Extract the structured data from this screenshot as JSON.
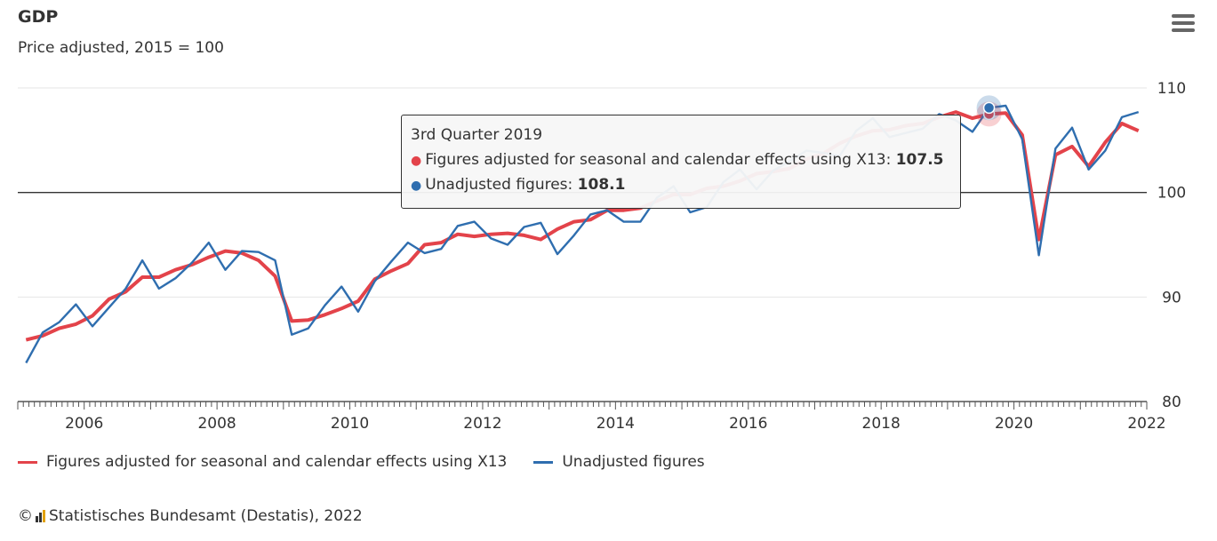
{
  "chart_data": {
    "type": "line",
    "title": "GDP",
    "subtitle": "Price adjusted, 2015 = 100",
    "xlim": [
      2005.0,
      2022.0
    ],
    "ylim": [
      80,
      110
    ],
    "x_ticks": [
      2006,
      2008,
      2010,
      2012,
      2014,
      2016,
      2018,
      2020,
      2022
    ],
    "y_ticks": [
      80,
      90,
      100,
      110
    ],
    "reference_line": 100,
    "grid": true,
    "legend_position": "bottom-left",
    "series": [
      {
        "name": "Figures adjusted for seasonal and calendar effects using X13",
        "color": "#e3434a",
        "x": [
          2005.125,
          2005.375,
          2005.625,
          2005.875,
          2006.125,
          2006.375,
          2006.625,
          2006.875,
          2007.125,
          2007.375,
          2007.625,
          2007.875,
          2008.125,
          2008.375,
          2008.625,
          2008.875,
          2009.125,
          2009.375,
          2009.625,
          2009.875,
          2010.125,
          2010.375,
          2010.625,
          2010.875,
          2011.125,
          2011.375,
          2011.625,
          2011.875,
          2012.125,
          2012.375,
          2012.625,
          2012.875,
          2013.125,
          2013.375,
          2013.625,
          2013.875,
          2014.125,
          2014.375,
          2014.625,
          2014.875,
          2015.125,
          2015.375,
          2015.625,
          2015.875,
          2016.125,
          2016.375,
          2016.625,
          2016.875,
          2017.125,
          2017.375,
          2017.625,
          2017.875,
          2018.125,
          2018.375,
          2018.625,
          2018.875,
          2019.125,
          2019.375,
          2019.625,
          2019.875,
          2020.125,
          2020.375,
          2020.625,
          2020.875,
          2021.125,
          2021.375,
          2021.625,
          2021.875
        ],
        "values": [
          85.9,
          86.3,
          87.0,
          87.4,
          88.2,
          89.8,
          90.5,
          91.9,
          91.9,
          92.6,
          93.1,
          93.8,
          94.4,
          94.2,
          93.5,
          92.0,
          87.7,
          87.8,
          88.3,
          88.9,
          89.6,
          91.7,
          92.5,
          93.2,
          95.0,
          95.2,
          96.0,
          95.8,
          96.0,
          96.1,
          95.9,
          95.5,
          96.5,
          97.2,
          97.4,
          98.3,
          98.3,
          98.5,
          99.2,
          99.8,
          99.8,
          100.4,
          100.6,
          101.1,
          101.8,
          102.0,
          102.3,
          103.2,
          103.7,
          104.7,
          105.4,
          105.9,
          106.0,
          106.4,
          106.6,
          107.2,
          107.7,
          107.1,
          107.5,
          107.6,
          105.5,
          95.5,
          103.6,
          104.4,
          102.5,
          104.8,
          106.6,
          105.9
        ]
      },
      {
        "name": "Unadjusted figures",
        "color": "#2f6eaf",
        "x": [
          2005.125,
          2005.375,
          2005.625,
          2005.875,
          2006.125,
          2006.375,
          2006.625,
          2006.875,
          2007.125,
          2007.375,
          2007.625,
          2007.875,
          2008.125,
          2008.375,
          2008.625,
          2008.875,
          2009.125,
          2009.375,
          2009.625,
          2009.875,
          2010.125,
          2010.375,
          2010.625,
          2010.875,
          2011.125,
          2011.375,
          2011.625,
          2011.875,
          2012.125,
          2012.375,
          2012.625,
          2012.875,
          2013.125,
          2013.375,
          2013.625,
          2013.875,
          2014.125,
          2014.375,
          2014.625,
          2014.875,
          2015.125,
          2015.375,
          2015.625,
          2015.875,
          2016.125,
          2016.375,
          2016.625,
          2016.875,
          2017.125,
          2017.375,
          2017.625,
          2017.875,
          2018.125,
          2018.375,
          2018.625,
          2018.875,
          2019.125,
          2019.375,
          2019.625,
          2019.875,
          2020.125,
          2020.375,
          2020.625,
          2020.875,
          2021.125,
          2021.375,
          2021.625,
          2021.875
        ],
        "values": [
          83.7,
          86.6,
          87.6,
          89.3,
          87.2,
          89.0,
          90.8,
          93.5,
          90.8,
          91.8,
          93.3,
          95.2,
          92.6,
          94.4,
          94.3,
          93.5,
          86.4,
          87.0,
          89.2,
          91.0,
          88.6,
          91.5,
          93.4,
          95.2,
          94.2,
          94.6,
          96.8,
          97.2,
          95.6,
          95.0,
          96.7,
          97.1,
          94.1,
          95.9,
          97.9,
          98.3,
          97.2,
          97.2,
          99.5,
          100.6,
          98.1,
          98.6,
          101.0,
          102.2,
          100.3,
          102.1,
          103.0,
          104.0,
          103.8,
          103.5,
          105.9,
          107.1,
          105.3,
          105.7,
          106.1,
          107.5,
          106.9,
          105.8,
          108.1,
          108.3,
          105.1,
          94.0,
          104.2,
          106.2,
          102.2,
          104.0,
          107.2,
          107.7
        ]
      }
    ],
    "tooltip": {
      "header": "3rd Quarter 2019",
      "x": 2019.625,
      "rows": [
        {
          "label": "Figures adjusted for seasonal and calendar effects using X13: ",
          "value": "107.5",
          "color": "#e3434a"
        },
        {
          "label": "Unadjusted figures: ",
          "value": "108.1",
          "color": "#2f6eaf"
        }
      ]
    },
    "credits": "Statistisches Bundesamt (Destatis), 2022",
    "credits_symbol": "©"
  }
}
